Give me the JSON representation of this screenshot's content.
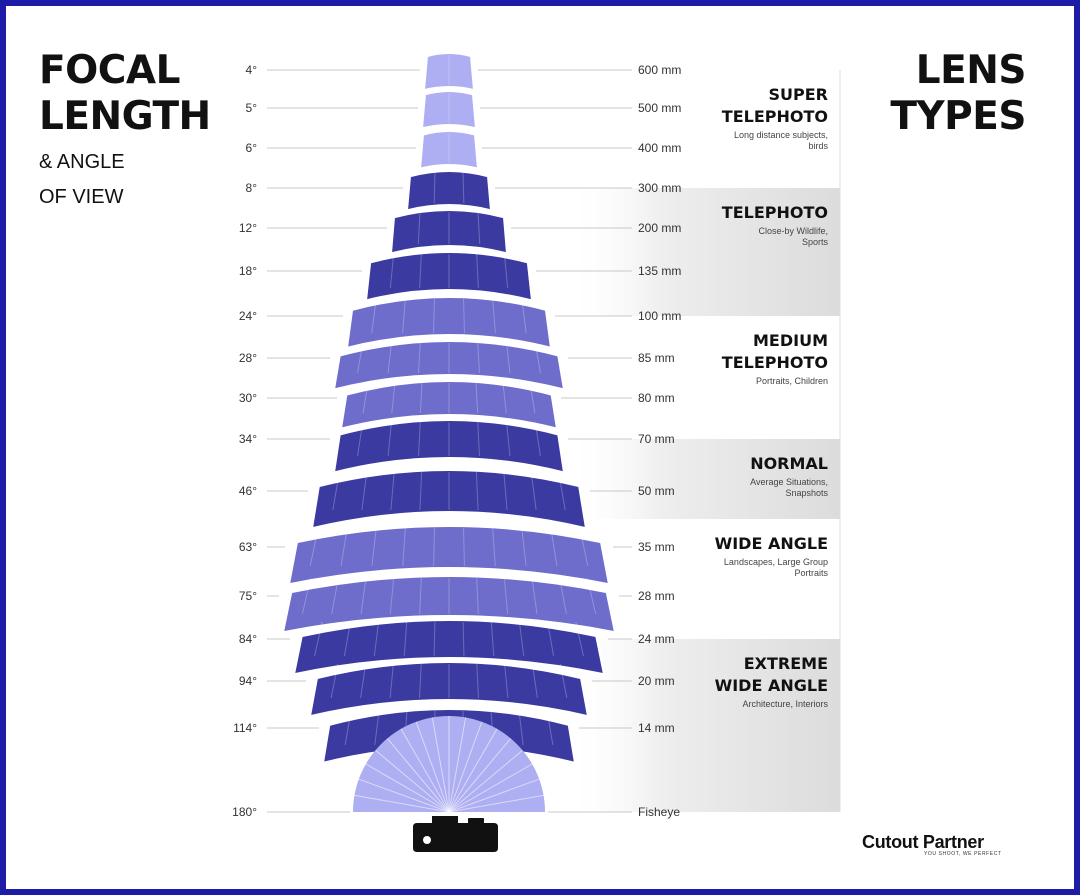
{
  "title_left": {
    "line1": "FOCAL",
    "line2": "LENGTH",
    "sub1": "& ANGLE",
    "sub2": "OF VIEW"
  },
  "title_right": {
    "line1": "LENS",
    "line2": "TYPES"
  },
  "colors": {
    "frame": "#1c1ca8",
    "dark": "#3b3aa0",
    "mid": "#6e6dcc",
    "light": "#aeaef2",
    "gray": "#e4e4e4"
  },
  "rows": [
    {
      "angle": "4°",
      "angle_value": 4,
      "focal": "600 mm",
      "shade": "light"
    },
    {
      "angle": "5°",
      "angle_value": 5,
      "focal": "500 mm",
      "shade": "light"
    },
    {
      "angle": "6°",
      "angle_value": 6,
      "focal": "400 mm",
      "shade": "light"
    },
    {
      "angle": "8°",
      "angle_value": 8,
      "focal": "300 mm",
      "shade": "dark"
    },
    {
      "angle": "12°",
      "angle_value": 12,
      "focal": "200 mm",
      "shade": "dark"
    },
    {
      "angle": "18°",
      "angle_value": 18,
      "focal": "135 mm",
      "shade": "dark"
    },
    {
      "angle": "24°",
      "angle_value": 24,
      "focal": "100 mm",
      "shade": "mid"
    },
    {
      "angle": "28°",
      "angle_value": 28,
      "focal": "85 mm",
      "shade": "mid"
    },
    {
      "angle": "30°",
      "angle_value": 30,
      "focal": "80 mm",
      "shade": "mid"
    },
    {
      "angle": "34°",
      "angle_value": 34,
      "focal": "70 mm",
      "shade": "dark"
    },
    {
      "angle": "46°",
      "angle_value": 46,
      "focal": "50 mm",
      "shade": "dark"
    },
    {
      "angle": "63°",
      "angle_value": 63,
      "focal": "35 mm",
      "shade": "mid"
    },
    {
      "angle": "75°",
      "angle_value": 75,
      "focal": "28 mm",
      "shade": "mid"
    },
    {
      "angle": "84°",
      "angle_value": 84,
      "focal": "24 mm",
      "shade": "dark"
    },
    {
      "angle": "94°",
      "angle_value": 94,
      "focal": "20 mm",
      "shade": "dark"
    },
    {
      "angle": "114°",
      "angle_value": 114,
      "focal": "14 mm",
      "shade": "dark"
    },
    {
      "angle": "180°",
      "angle_value": 180,
      "focal": "Fisheye",
      "shade": "light"
    }
  ],
  "bands": [
    {
      "name_lines": [
        "SUPER",
        "TELEPHOTO"
      ],
      "desc_lines": [
        "Long distance subjects,",
        "birds"
      ],
      "bg": "white"
    },
    {
      "name_lines": [
        "TELEPHOTO"
      ],
      "desc_lines": [
        "Close-by Wildlife,",
        "Sports"
      ],
      "bg": "gray"
    },
    {
      "name_lines": [
        "MEDIUM",
        "TELEPHOTO"
      ],
      "desc_lines": [
        "Portraits, Children"
      ],
      "bg": "white"
    },
    {
      "name_lines": [
        "NORMAL"
      ],
      "desc_lines": [
        "Average Situations,",
        "Snapshots"
      ],
      "bg": "gray"
    },
    {
      "name_lines": [
        "WIDE ANGLE"
      ],
      "desc_lines": [
        "Landscapes, Large Group",
        "Portraits"
      ],
      "bg": "white"
    },
    {
      "name_lines": [
        "EXTREME",
        "WIDE ANGLE"
      ],
      "desc_lines": [
        "Architecture, Interiors"
      ],
      "bg": "gray"
    }
  ],
  "logo": {
    "brand": "Cutout Partner",
    "tagline": "YOU SHOOT, WE PERFECT"
  }
}
